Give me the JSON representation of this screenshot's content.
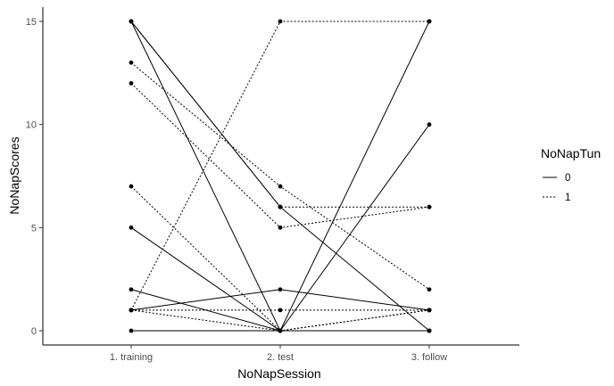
{
  "chart_data": {
    "type": "line",
    "title": "",
    "xlabel": "NoNapSession",
    "ylabel": "NoNapScores",
    "categories": [
      "1. training",
      "2. test",
      "3. follow"
    ],
    "ylim": [
      0,
      15
    ],
    "yticks": [
      "0",
      "5",
      "10",
      "15"
    ],
    "grid": false,
    "legend": {
      "title": "NoNapTun",
      "position": "right",
      "entries": [
        {
          "label": "0",
          "linetype": "solid"
        },
        {
          "label": "1",
          "linetype": "dotted"
        }
      ]
    },
    "series": [
      {
        "group": "0",
        "values": [
          15,
          6,
          0
        ]
      },
      {
        "group": "0",
        "values": [
          15,
          0,
          15
        ]
      },
      {
        "group": "0",
        "values": [
          5,
          0,
          10
        ]
      },
      {
        "group": "0",
        "values": [
          2,
          0,
          0
        ]
      },
      {
        "group": "0",
        "values": [
          1,
          2,
          1
        ]
      },
      {
        "group": "0",
        "values": [
          0,
          0,
          0
        ]
      },
      {
        "group": "1",
        "values": [
          15,
          6,
          6
        ]
      },
      {
        "group": "1",
        "values": [
          13,
          7,
          2
        ]
      },
      {
        "group": "1",
        "values": [
          12,
          5,
          6
        ]
      },
      {
        "group": "1",
        "values": [
          7,
          0,
          1
        ]
      },
      {
        "group": "1",
        "values": [
          1,
          15,
          15
        ]
      },
      {
        "group": "1",
        "values": [
          1,
          0,
          1
        ]
      },
      {
        "group": "1",
        "values": [
          1,
          1,
          1
        ]
      }
    ]
  }
}
